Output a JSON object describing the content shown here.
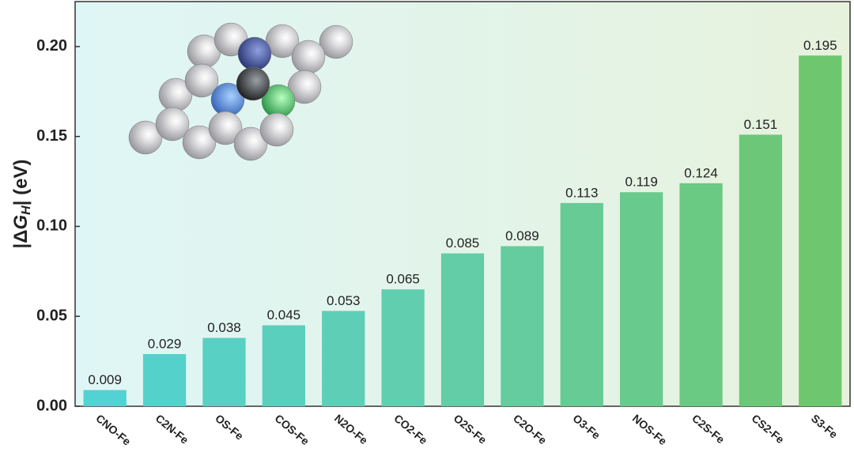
{
  "chart_data": {
    "type": "bar",
    "ylabel": {
      "prefix": "|Δ",
      "main": "G",
      "sub": "H",
      "suffix": "| (eV)"
    },
    "categories": [
      "CNO-Fe",
      "C2N-Fe",
      "OS-Fe",
      "COS-Fe",
      "N2O-Fe",
      "CO2-Fe",
      "O2S-Fe",
      "C2O-Fe",
      "O3-Fe",
      "NOS-Fe",
      "C2S-Fe",
      "CS2-Fe",
      "S3-Fe"
    ],
    "values": [
      0.009,
      0.029,
      0.038,
      0.045,
      0.053,
      0.065,
      0.085,
      0.089,
      0.113,
      0.119,
      0.124,
      0.151,
      0.195
    ],
    "colors": [
      "#52d2d2",
      "#55d1cb",
      "#58d0c4",
      "#5bcfbd",
      "#5ecfb6",
      "#60ceaf",
      "#62cda6",
      "#64cc9e",
      "#66cb95",
      "#68ca8c",
      "#6ac982",
      "#6cc878",
      "#6ec76e"
    ],
    "ylim": [
      0,
      0.225
    ],
    "yticks": [
      {
        "value": 0,
        "label": "0.00"
      },
      {
        "value": 0.05,
        "label": "0.05"
      },
      {
        "value": 0.1,
        "label": "0.10"
      },
      {
        "value": 0.15,
        "label": "0.15"
      },
      {
        "value": 0.2,
        "label": "0.20"
      }
    ]
  }
}
